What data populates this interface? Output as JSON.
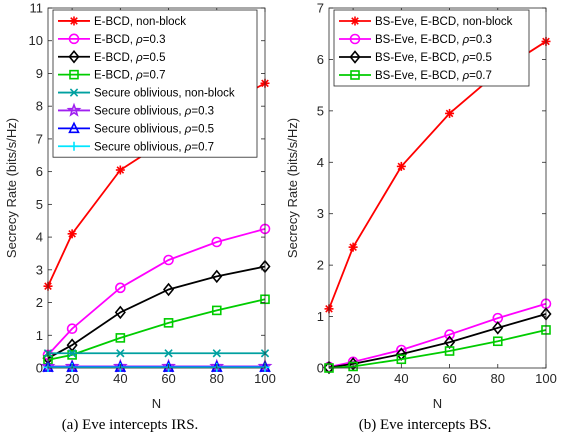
{
  "chart_data": [
    {
      "type": "line",
      "caption": "(a) Eve intercepts IRS.",
      "xlabel": "N",
      "ylabel": "Secrecy Rate (bits/s/Hz)",
      "xlim": [
        10,
        100
      ],
      "ylim": [
        0,
        11
      ],
      "xticks": [
        20,
        40,
        60,
        80,
        100
      ],
      "yticks": [
        0,
        1,
        2,
        3,
        4,
        5,
        6,
        7,
        8,
        9,
        10,
        11
      ],
      "grid": false,
      "legend_position": "top-left",
      "x": [
        10,
        20,
        40,
        60,
        80,
        100
      ],
      "series": [
        {
          "name": "E-BCD, non-block",
          "prefix": "E-BCD, ",
          "rho": "",
          "suffix": "non-block",
          "color": "#ff0000",
          "marker": "asterisk",
          "values": [
            2.5,
            4.1,
            6.05,
            7.0,
            7.9,
            8.7
          ]
        },
        {
          "name": "E-BCD, ρ=0.3",
          "prefix": "E-BCD, ",
          "rho": "ρ",
          "suffix": "=0.3",
          "color": "#ff00ff",
          "marker": "circle",
          "values": [
            0.4,
            1.2,
            2.45,
            3.3,
            3.85,
            4.25
          ]
        },
        {
          "name": "E-BCD, ρ=0.5",
          "prefix": "E-BCD, ",
          "rho": "ρ",
          "suffix": "=0.5",
          "color": "#000000",
          "marker": "diamond",
          "values": [
            0.3,
            0.7,
            1.7,
            2.4,
            2.8,
            3.1
          ]
        },
        {
          "name": "E-BCD, ρ=0.7",
          "prefix": "E-BCD, ",
          "rho": "ρ",
          "suffix": "=0.7",
          "color": "#00cc00",
          "marker": "square",
          "values": [
            0.25,
            0.4,
            0.92,
            1.38,
            1.76,
            2.1
          ]
        },
        {
          "name": "Secure oblivious, non-block",
          "prefix": "Secure oblivious, ",
          "rho": "",
          "suffix": "non-block",
          "color": "#00a0a0",
          "marker": "x",
          "values": [
            0.45,
            0.45,
            0.45,
            0.45,
            0.45,
            0.45
          ]
        },
        {
          "name": "Secure oblivious, ρ=0.3",
          "prefix": "Secure oblivious, ",
          "rho": "ρ",
          "suffix": "=0.3",
          "color": "#a020f0",
          "marker": "star",
          "values": [
            0.05,
            0.05,
            0.05,
            0.05,
            0.05,
            0.05
          ]
        },
        {
          "name": "Secure oblivious, ρ=0.5",
          "prefix": "Secure oblivious, ",
          "rho": "ρ",
          "suffix": "=0.5",
          "color": "#0000ff",
          "marker": "triangle",
          "values": [
            0.03,
            0.03,
            0.03,
            0.03,
            0.03,
            0.03
          ]
        },
        {
          "name": "Secure oblivious, ρ=0.7",
          "prefix": "Secure oblivious, ",
          "rho": "ρ",
          "suffix": "=0.7",
          "color": "#00e5ff",
          "marker": "plus",
          "values": [
            0.02,
            0.02,
            0.02,
            0.02,
            0.02,
            0.02
          ]
        }
      ]
    },
    {
      "type": "line",
      "caption": "(b) Eve intercepts BS.",
      "xlabel": "N",
      "ylabel": "Secrecy Rate (bits/s/Hz)",
      "xlim": [
        10,
        100
      ],
      "ylim": [
        0,
        7
      ],
      "xticks": [
        20,
        40,
        60,
        80,
        100
      ],
      "yticks": [
        0,
        1,
        2,
        3,
        4,
        5,
        6,
        7
      ],
      "grid": false,
      "legend_position": "top-left",
      "x": [
        10,
        20,
        40,
        60,
        80,
        100
      ],
      "series": [
        {
          "name": "BS-Eve, E-BCD, non-block",
          "prefix": "BS-Eve, E-BCD, ",
          "rho": "",
          "suffix": "non-block",
          "color": "#ff0000",
          "marker": "asterisk",
          "values": [
            1.15,
            2.35,
            3.92,
            4.95,
            5.75,
            6.35
          ]
        },
        {
          "name": "BS-Eve, E-BCD, ρ=0.3",
          "prefix": "BS-Eve, E-BCD, ",
          "rho": "ρ",
          "suffix": "=0.3",
          "color": "#ff00ff",
          "marker": "circle",
          "values": [
            0.02,
            0.12,
            0.35,
            0.65,
            0.97,
            1.25
          ]
        },
        {
          "name": "BS-Eve, E-BCD, ρ=0.5",
          "prefix": "BS-Eve, E-BCD, ",
          "rho": "ρ",
          "suffix": "=0.5",
          "color": "#000000",
          "marker": "diamond",
          "values": [
            0.01,
            0.08,
            0.27,
            0.5,
            0.78,
            1.05
          ]
        },
        {
          "name": "BS-Eve, E-BCD, ρ=0.7",
          "prefix": "BS-Eve, E-BCD, ",
          "rho": "ρ",
          "suffix": "=0.7",
          "color": "#00cc00",
          "marker": "square",
          "values": [
            0.0,
            0.03,
            0.17,
            0.33,
            0.52,
            0.74
          ]
        }
      ]
    }
  ]
}
